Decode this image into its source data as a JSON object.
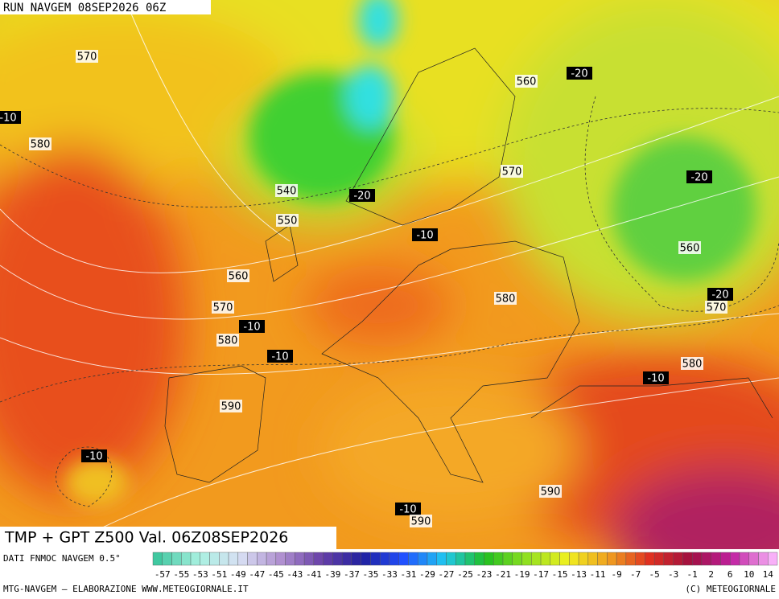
{
  "header": {
    "run": "RUN NAVGEM 08SEP2026 06Z"
  },
  "map": {
    "labels": [
      "570",
      "560",
      "-20",
      "-10",
      "580",
      "-20",
      "570",
      "540",
      "-20",
      "550",
      "-10",
      "560",
      "560",
      "-20",
      "570",
      "580",
      "570",
      "-10",
      "580",
      "-10",
      "580",
      "-10",
      "590",
      "-10",
      "590",
      "-10",
      "590"
    ]
  },
  "title": "TMP + GPT Z500 Val. 06Z08SEP2026",
  "legend": {
    "source": "DATI FNMOC NAVGEM 0.5°",
    "scale": [
      "-57",
      "-55",
      "-53",
      "-51",
      "-49",
      "-47",
      "-45",
      "-43",
      "-41",
      "-39",
      "-37",
      "-35",
      "-33",
      "-31",
      "-29",
      "-27",
      "-25",
      "-23",
      "-21",
      "-19",
      "-17",
      "-15",
      "-13",
      "-11",
      "-9",
      "-7",
      "-5",
      "-3",
      "-1",
      "2",
      "6",
      "10",
      "14"
    ]
  },
  "footer": {
    "left": "MTG-NAVGEM – ELABORAZIONE WWW.METEOGIORNALE.IT",
    "right": "(C) METEOGIORNALE"
  }
}
